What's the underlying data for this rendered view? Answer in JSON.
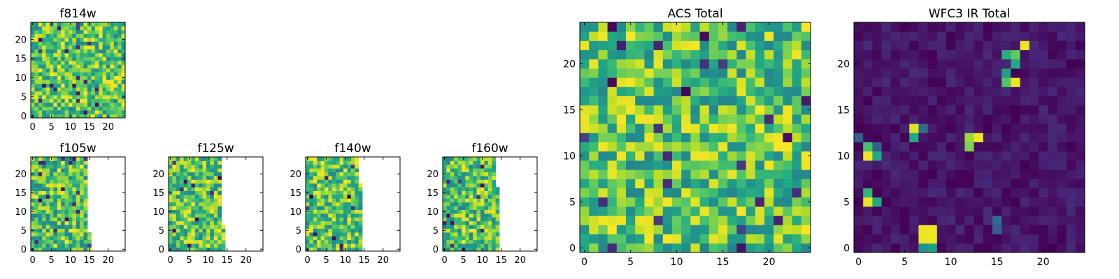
{
  "chart_data": [
    {
      "type": "heatmap",
      "title": "f814w",
      "xticks": [
        "0",
        "5",
        "10",
        "15",
        "20"
      ],
      "yticks": [
        "0",
        "5",
        "10",
        "15",
        "20"
      ],
      "xlim": [
        -0.5,
        24.5
      ],
      "ylim": [
        -0.5,
        24.5
      ],
      "grid": false,
      "colormap": "viridis",
      "data_extent": {
        "cols": 25,
        "rows": 25
      },
      "value_range": [
        0.45,
        1.0
      ],
      "seed": 11
    },
    {
      "type": "heatmap",
      "title": "f105w",
      "xticks": [
        "0",
        "5",
        "10",
        "15",
        "20"
      ],
      "yticks": [
        "0",
        "5",
        "10",
        "15",
        "20"
      ],
      "xlim": [
        -0.5,
        24.5
      ],
      "ylim": [
        -0.5,
        24.5
      ],
      "grid": false,
      "colormap": "viridis",
      "data_extent": {
        "cols": 16,
        "rows": 25,
        "col_limit_by_row": {
          "0-4": 16,
          "5-20": 15,
          "21-24": 15
        }
      },
      "value_range": [
        0.45,
        1.0
      ],
      "seed": 23
    },
    {
      "type": "heatmap",
      "title": "f125w",
      "xticks": [
        "0",
        "5",
        "10",
        "15",
        "20"
      ],
      "yticks": [
        "0",
        "5",
        "10",
        "15",
        "20"
      ],
      "xlim": [
        -0.5,
        24.5
      ],
      "ylim": [
        -0.5,
        24.5
      ],
      "grid": false,
      "colormap": "viridis",
      "data_extent": {
        "cols": 15,
        "rows": 25,
        "col_limit_by_row": {
          "0-2": 15,
          "3-6": 15,
          "7-24": 14
        }
      },
      "value_range": [
        0.45,
        1.0
      ],
      "seed": 37
    },
    {
      "type": "heatmap",
      "title": "f140w",
      "xticks": [
        "0",
        "5",
        "10",
        "15",
        "20"
      ],
      "yticks": [
        "0",
        "5",
        "10",
        "15",
        "20"
      ],
      "xlim": [
        -0.5,
        24.5
      ],
      "ylim": [
        -0.5,
        24.5
      ],
      "grid": false,
      "colormap": "viridis",
      "data_extent": {
        "cols": 15,
        "rows": 25,
        "col_limit_by_row": {
          "0-17": 15,
          "18-24": 14
        }
      },
      "value_range": [
        0.45,
        1.0
      ],
      "seed": 41
    },
    {
      "type": "heatmap",
      "title": "f160w",
      "xticks": [
        "0",
        "5",
        "10",
        "15",
        "20"
      ],
      "yticks": [
        "0",
        "5",
        "10",
        "15",
        "20"
      ],
      "xlim": [
        -0.5,
        24.5
      ],
      "ylim": [
        -0.5,
        24.5
      ],
      "grid": false,
      "colormap": "viridis",
      "data_extent": {
        "cols": 15,
        "rows": 25,
        "col_limit_by_row": {
          "0-16": 15,
          "17-24": 14
        }
      },
      "value_range": [
        0.45,
        1.0
      ],
      "seed": 53
    },
    {
      "type": "heatmap",
      "title": "ACS Total",
      "xticks": [
        "0",
        "5",
        "10",
        "15",
        "20"
      ],
      "yticks": [
        "0",
        "5",
        "10",
        "15",
        "20"
      ],
      "xlim": [
        -0.5,
        24.5
      ],
      "ylim": [
        -0.5,
        24.5
      ],
      "grid": false,
      "colormap": "viridis",
      "data_extent": {
        "cols": 25,
        "rows": 25
      },
      "value_range": [
        0.45,
        1.0
      ],
      "seed": 67
    },
    {
      "type": "heatmap",
      "title": "WFC3 IR Total",
      "xticks": [
        "0",
        "5",
        "10",
        "15",
        "20"
      ],
      "yticks": [
        "0",
        "5",
        "10",
        "15",
        "20"
      ],
      "xlim": [
        -0.5,
        24.5
      ],
      "ylim": [
        -0.5,
        24.5
      ],
      "grid": false,
      "colormap": "viridis",
      "data_extent": {
        "cols": 25,
        "rows": 25
      },
      "value_range": [
        0.0,
        0.12
      ],
      "seed": 79,
      "hotspots": [
        {
          "x": 18,
          "y": 22,
          "v": 0.97
        },
        {
          "x": 17,
          "y": 21,
          "v": 0.75
        },
        {
          "x": 16,
          "y": 21,
          "v": 0.62
        },
        {
          "x": 17,
          "y": 20,
          "v": 0.6
        },
        {
          "x": 16,
          "y": 19,
          "v": 0.55
        },
        {
          "x": 16,
          "y": 18,
          "v": 0.72
        },
        {
          "x": 17,
          "y": 18,
          "v": 0.98
        },
        {
          "x": 6,
          "y": 13,
          "v": 0.95
        },
        {
          "x": 6,
          "y": 12,
          "v": 0.6
        },
        {
          "x": 7,
          "y": 13,
          "v": 0.35
        },
        {
          "x": 12,
          "y": 12,
          "v": 0.85
        },
        {
          "x": 13,
          "y": 12,
          "v": 0.98
        },
        {
          "x": 12,
          "y": 11,
          "v": 0.8
        },
        {
          "x": 1,
          "y": 11,
          "v": 0.7
        },
        {
          "x": 1,
          "y": 10,
          "v": 0.98
        },
        {
          "x": 2,
          "y": 10,
          "v": 0.6
        },
        {
          "x": 2,
          "y": 11,
          "v": 0.3
        },
        {
          "x": 1,
          "y": 6,
          "v": 0.65
        },
        {
          "x": 1,
          "y": 5,
          "v": 0.97
        },
        {
          "x": 2,
          "y": 5,
          "v": 0.6
        },
        {
          "x": 7,
          "y": 2,
          "v": 0.98
        },
        {
          "x": 8,
          "y": 2,
          "v": 0.98
        },
        {
          "x": 7,
          "y": 1,
          "v": 0.97
        },
        {
          "x": 8,
          "y": 1,
          "v": 0.98
        },
        {
          "x": 7,
          "y": 0,
          "v": 0.5
        },
        {
          "x": 8,
          "y": 0,
          "v": 0.55
        },
        {
          "x": 15,
          "y": 3,
          "v": 0.35
        },
        {
          "x": 15,
          "y": 2,
          "v": 0.3
        },
        {
          "x": 0,
          "y": 12,
          "v": 0.3
        }
      ]
    }
  ]
}
